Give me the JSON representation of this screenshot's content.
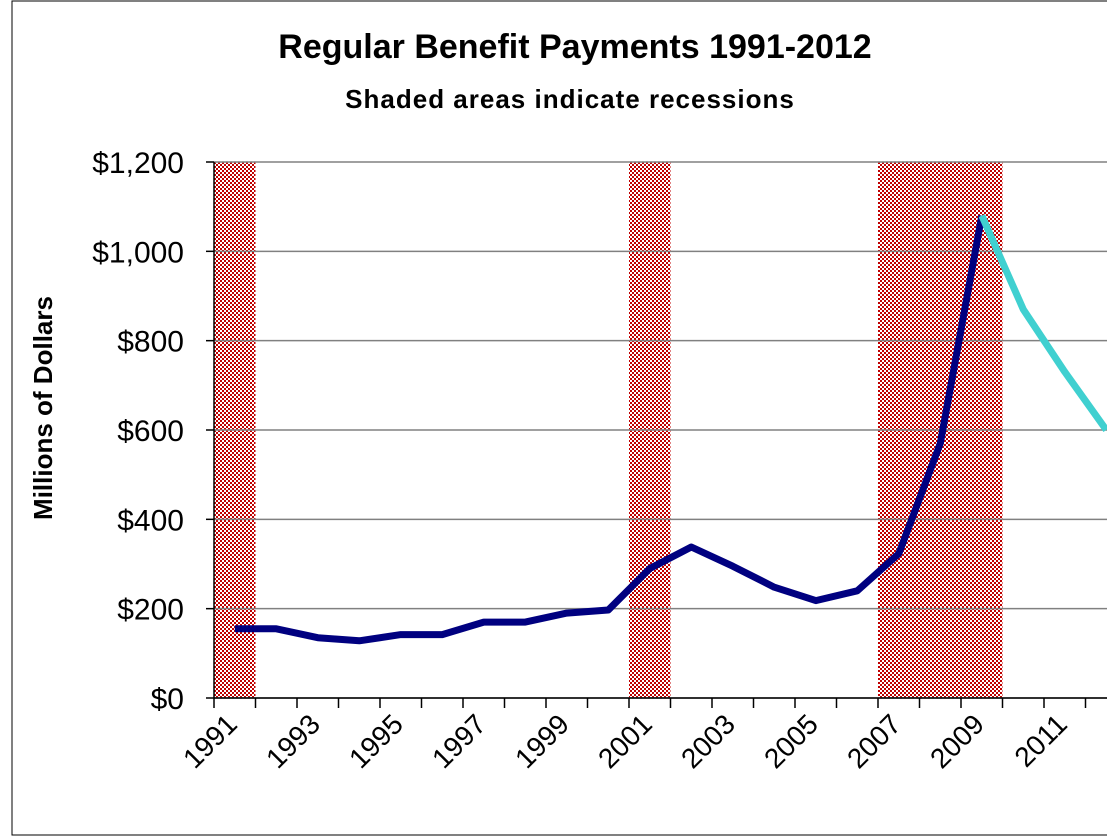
{
  "chart_data": {
    "type": "line",
    "title": "Regular Benefit Payments 1991-2012",
    "subtitle": "Shaded areas indicate recessions",
    "y_label": "Millions of Dollars",
    "categories": [
      "1991",
      null,
      "1993",
      null,
      "1995",
      null,
      "1997",
      null,
      "1999",
      null,
      "2001",
      null,
      "2003",
      null,
      "2005",
      null,
      "2007",
      null,
      "2009",
      null,
      "2011",
      null
    ],
    "series": [
      {
        "color": "#000080",
        "values": [
          155,
          155,
          135,
          128,
          142,
          142,
          170,
          170,
          190,
          197,
          290,
          338,
          295,
          248,
          218,
          240,
          323,
          570,
          1080,
          null,
          null,
          null
        ]
      },
      {
        "color": "#40d0d0",
        "values": [
          null,
          null,
          null,
          null,
          null,
          null,
          null,
          null,
          null,
          null,
          null,
          null,
          null,
          null,
          null,
          null,
          null,
          null,
          1080,
          870,
          730,
          600
        ]
      }
    ],
    "recessions": [
      {
        "start": "1991",
        "end": "1991"
      },
      {
        "start": "2001",
        "end": "2001"
      },
      {
        "start": "2007",
        "end": "2009"
      }
    ],
    "recession_color": "#c00000",
    "ylim": [
      0,
      1200
    ],
    "yticks": [
      {
        "value": 0,
        "label": "$0"
      },
      {
        "value": 200,
        "label": "$200"
      },
      {
        "value": 400,
        "label": "$400"
      },
      {
        "value": 600,
        "label": "$600"
      },
      {
        "value": 800,
        "label": "$800"
      },
      {
        "value": 1000,
        "label": "$1,000"
      },
      {
        "value": 1200,
        "label": "$1,200"
      }
    ],
    "grid": true
  }
}
